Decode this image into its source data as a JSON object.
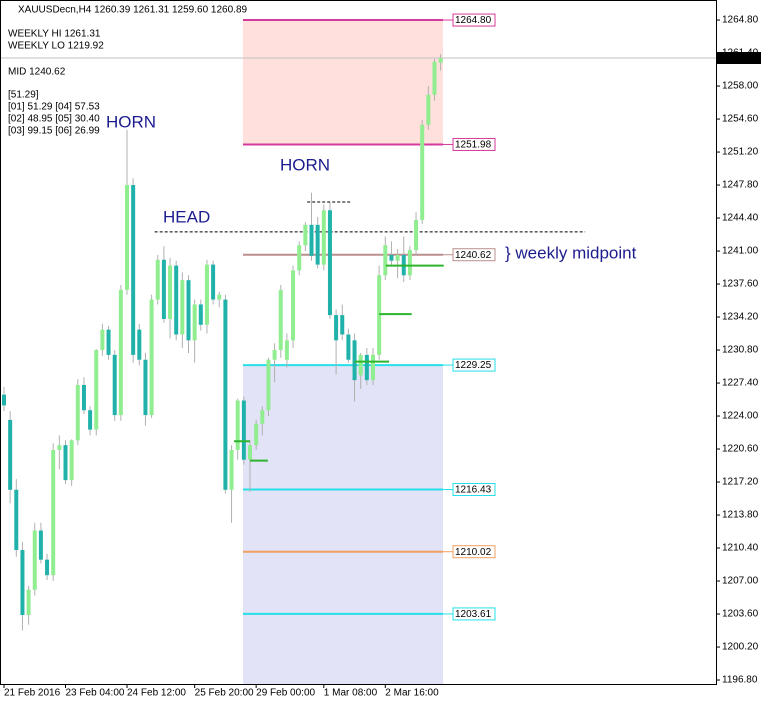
{
  "chart_data": {
    "type": "candlestick",
    "title": "XAUUSDecn,H4  1260.39 1261.31 1259.60 1260.89",
    "info_lines": [
      "WEEKLY HI 1261.31",
      "WEEKLY LO 1219.92",
      "MID 1240.62",
      "[51.29]",
      "[01] 51.29 [04] 57.53",
      "[02] 48.95 [05] 30.40",
      "[03] 99.15 [06] 26.99"
    ],
    "annotations": [
      "HORN",
      "HORN",
      "HEAD",
      "} weekly midpoint"
    ],
    "categories": [
      "21 Feb 2016",
      null,
      null,
      null,
      null,
      null,
      null,
      null,
      null,
      null,
      "23 Feb 04:00",
      null,
      null,
      null,
      null,
      null,
      null,
      null,
      null,
      null,
      "24 Feb 12:00",
      null,
      null,
      null,
      null,
      null,
      null,
      null,
      null,
      null,
      null,
      "25 Feb 20:00",
      null,
      null,
      null,
      null,
      null,
      null,
      null,
      null,
      null,
      "29 Feb 00:00",
      null,
      null,
      null,
      null,
      null,
      null,
      null,
      null,
      null,
      null,
      "1 Mar 08:00",
      null,
      null,
      null,
      null,
      null,
      null,
      null,
      null,
      null,
      "2 Mar 16:00",
      null,
      null,
      null,
      null,
      null,
      null,
      null,
      null,
      null
    ],
    "open": [
      1226.2,
      1223.6,
      1216.4,
      1210.2,
      1203.5,
      1206.1,
      1212.2,
      1209.2,
      1207.6,
      1220.5,
      1221.0,
      1217.4,
      1221.5,
      1227.2,
      1224.6,
      1222.6,
      1230.8,
      1232.9,
      1230.3,
      1224.1,
      1237.0,
      1247.8,
      1232.9,
      1229.8,
      1224.1,
      1236.0,
      1240.1,
      1234.0,
      1239.5,
      1232.4,
      1238.0,
      1231.8,
      1235.5,
      1233.4,
      1239.6,
      1236.0,
      1236.0,
      1216.4,
      1220.5,
      1225.6,
      1219.5,
      1221.0,
      1223.2,
      1224.6,
      1229.8,
      1230.8,
      1229.8,
      1231.8,
      1239.0,
      1241.6,
      1243.7,
      1243.7,
      1239.6,
      1245.2,
      1234.4,
      1234.4,
      1232.4,
      1231.8,
      1228.2,
      1230.3,
      1227.7,
      1230.3,
      1238.5,
      1240.6,
      1240.0,
      1240.6,
      1238.5,
      1241.1,
      1244.2,
      1254.0,
      1257.1,
      1260.39
    ],
    "high": [
      1227.0,
      1224.5,
      1217.5,
      1211.0,
      1206.5,
      1213.0,
      1213.0,
      1209.8,
      1221.2,
      1222.0,
      1221.5,
      1221.6,
      1227.8,
      1228.0,
      1225.0,
      1230.9,
      1233.5,
      1233.3,
      1230.8,
      1237.5,
      1253.5,
      1248.5,
      1233.5,
      1230.5,
      1236.5,
      1240.6,
      1241.5,
      1240.3,
      1240.0,
      1238.8,
      1238.5,
      1236.0,
      1236.0,
      1240.1,
      1240.0,
      1236.8,
      1236.5,
      1221.0,
      1225.8,
      1226.0,
      1221.5,
      1223.6,
      1225.0,
      1230.0,
      1231.5,
      1237.5,
      1232.5,
      1239.5,
      1242.0,
      1244.0,
      1247.0,
      1244.5,
      1245.8,
      1246.0,
      1235.0,
      1235.5,
      1233.0,
      1232.5,
      1230.5,
      1231.0,
      1231.0,
      1239.5,
      1242.5,
      1242.0,
      1241.2,
      1242.5,
      1241.5,
      1245.0,
      1254.5,
      1258.0,
      1260.8,
      1261.31
    ],
    "low": [
      1224.5,
      1215.0,
      1209.5,
      1201.9,
      1202.5,
      1205.5,
      1208.8,
      1207.1,
      1207.0,
      1218.5,
      1217.0,
      1216.8,
      1221.0,
      1224.2,
      1222.0,
      1222.0,
      1230.2,
      1229.8,
      1223.5,
      1223.5,
      1236.5,
      1229.5,
      1229.2,
      1223.0,
      1223.8,
      1235.5,
      1233.6,
      1232.0,
      1231.8,
      1231.0,
      1230.5,
      1229.5,
      1232.8,
      1232.5,
      1235.5,
      1235.2,
      1216.0,
      1213.0,
      1219.5,
      1219.0,
      1216.2,
      1220.5,
      1222.0,
      1224.0,
      1227.5,
      1230.0,
      1229.0,
      1231.0,
      1238.5,
      1241.0,
      1240.0,
      1239.2,
      1239.0,
      1234.0,
      1228.3,
      1231.8,
      1229.5,
      1225.5,
      1226.8,
      1227.2,
      1227.2,
      1229.8,
      1238.0,
      1239.5,
      1238.2,
      1237.8,
      1238.0,
      1240.5,
      1243.8,
      1253.5,
      1256.5,
      1259.6
    ],
    "close": [
      1225.1,
      1216.4,
      1210.2,
      1203.5,
      1206.1,
      1212.2,
      1209.2,
      1207.6,
      1220.5,
      1221.0,
      1217.4,
      1221.5,
      1227.2,
      1224.6,
      1222.6,
      1230.8,
      1232.9,
      1230.3,
      1224.1,
      1237.0,
      1247.8,
      1230.3,
      1229.8,
      1224.1,
      1236.0,
      1240.1,
      1234.0,
      1239.5,
      1232.4,
      1238.0,
      1231.8,
      1235.5,
      1233.4,
      1239.6,
      1236.0,
      1236.5,
      1216.4,
      1220.5,
      1225.6,
      1219.5,
      1221.0,
      1223.2,
      1224.6,
      1229.8,
      1230.8,
      1237.0,
      1231.8,
      1239.0,
      1241.6,
      1243.7,
      1240.5,
      1239.6,
      1245.2,
      1234.4,
      1231.8,
      1232.4,
      1229.8,
      1227.7,
      1230.3,
      1227.7,
      1230.3,
      1238.5,
      1241.6,
      1240.0,
      1240.6,
      1238.5,
      1241.1,
      1244.2,
      1254.0,
      1257.1,
      1260.5,
      1260.89
    ],
    "colors": {
      "up": "#90ee90",
      "down": "#20b2aa"
    },
    "levels": [
      {
        "value": 1264.8,
        "label": "1264.80",
        "color": "#d63a9a"
      },
      {
        "value": 1251.98,
        "label": "1251.98",
        "color": "#d63a9a"
      },
      {
        "value": 1240.62,
        "label": "1240.62",
        "color": "#bc8f8f"
      },
      {
        "value": 1229.25,
        "label": "1229.25",
        "color": "#25e0e8"
      },
      {
        "value": 1216.43,
        "label": "1216.43",
        "color": "#25e0e8"
      },
      {
        "value": 1210.02,
        "label": "1210.02",
        "color": "#f0a060"
      },
      {
        "value": 1203.61,
        "label": "1203.61",
        "color": "#25e0e8"
      }
    ],
    "zone_colors": [
      "#ffe0dc",
      "#e3e3f7"
    ],
    "segments": [
      {
        "x": [
          37.4,
          40
        ],
        "value": 1221.4,
        "color": "#2db32d"
      },
      {
        "x": [
          40,
          42.9
        ],
        "value": 1219.4,
        "color": "#2db32d"
      },
      {
        "x": [
          57,
          62.6
        ],
        "value": 1229.6,
        "color": "#2db32d"
      },
      {
        "x": [
          61,
          66.3
        ],
        "value": 1234.5,
        "color": "#2db32d"
      },
      {
        "x": [
          62.1,
          71.5
        ],
        "value": 1239.5,
        "color": "#2db32d"
      }
    ],
    "dashed_lines": [
      {
        "x": [
          24.5,
          94.5
        ],
        "value": 1242.98
      },
      {
        "x": [
          49.3,
          56.6
        ],
        "value": 1246.05
      }
    ],
    "current_price": 1260.89,
    "ylim": [
      1196.39,
      1266.35
    ],
    "yticks": [
      {
        "value": 1196.8,
        "label": "1196.80"
      },
      {
        "value": 1200.2,
        "label": "1200.20"
      },
      {
        "value": 1203.6,
        "label": "1203.60"
      },
      {
        "value": 1207,
        "label": "1207.00"
      },
      {
        "value": 1210.4,
        "label": "1210.40"
      },
      {
        "value": 1213.8,
        "label": "1213.80"
      },
      {
        "value": 1217.2,
        "label": "1217.20"
      },
      {
        "value": 1220.6,
        "label": "1220.60"
      },
      {
        "value": 1224,
        "label": "1224.00"
      },
      {
        "value": 1227.4,
        "label": "1227.40"
      },
      {
        "value": 1230.8,
        "label": "1230.80"
      },
      {
        "value": 1234.2,
        "label": "1234.20"
      },
      {
        "value": 1237.6,
        "label": "1237.60"
      },
      {
        "value": 1241,
        "label": "1241.00"
      },
      {
        "value": 1244.4,
        "label": "1244.40"
      },
      {
        "value": 1247.8,
        "label": "1247.80"
      },
      {
        "value": 1251.2,
        "label": "1251.20"
      },
      {
        "value": 1254.6,
        "label": "1254.60"
      },
      {
        "value": 1258,
        "label": "1258.00"
      },
      {
        "value": 1261.4,
        "label": "1261.40"
      },
      {
        "value": 1264.8,
        "label": "1264.80"
      }
    ]
  }
}
